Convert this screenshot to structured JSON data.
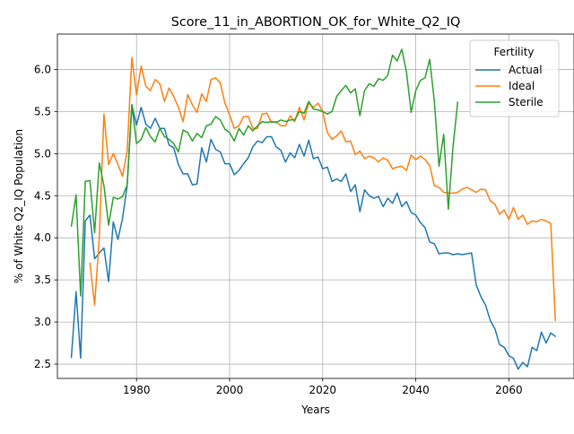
{
  "chart_data": {
    "type": "line",
    "title": "Score_11_in_ABORTION_OK_for_White_Q2_IQ",
    "xlabel": "Years",
    "ylabel": "% of White Q2_IQ Population",
    "xlim": [
      1963,
      2074
    ],
    "ylim": [
      2.33,
      6.42
    ],
    "x_ticks": [
      1980,
      2000,
      2020,
      2040,
      2060
    ],
    "y_ticks": [
      2.5,
      3.0,
      3.5,
      4.0,
      4.5,
      5.0,
      5.5,
      6.0
    ],
    "grid": true,
    "legend": {
      "title": "Fertility",
      "position": "top-right"
    },
    "series": [
      {
        "name": "Actual",
        "color": "#1f77b4",
        "x": [
          1966,
          1967,
          1968,
          1969,
          1970,
          1971,
          1972,
          1973,
          1974,
          1975,
          1976,
          1977,
          1978,
          1979,
          1980,
          1981,
          1982,
          1983,
          1984,
          1985,
          1986,
          1987,
          1988,
          1989,
          1990,
          1991,
          1992,
          1993,
          1994,
          1995,
          1996,
          1997,
          1998,
          1999,
          2000,
          2001,
          2002,
          2003,
          2004,
          2005,
          2006,
          2007,
          2008,
          2009,
          2010,
          2011,
          2012,
          2013,
          2014,
          2015,
          2016,
          2017,
          2018,
          2019,
          2020,
          2021,
          2022,
          2023,
          2024,
          2025,
          2026,
          2027,
          2028,
          2029,
          2030,
          2031,
          2032,
          2033,
          2034,
          2035,
          2036,
          2037,
          2038,
          2039,
          2040,
          2041,
          2042,
          2043,
          2044,
          2045,
          2046,
          2047,
          2048,
          2049,
          2050,
          2051,
          2052,
          2053,
          2054,
          2055,
          2056,
          2057,
          2058,
          2059,
          2060,
          2061,
          2062,
          2063,
          2064,
          2065,
          2066,
          2067,
          2068,
          2069,
          2070
        ],
        "y": [
          2.58,
          3.36,
          2.57,
          4.2,
          4.27,
          3.75,
          3.82,
          3.88,
          3.48,
          4.19,
          3.98,
          4.23,
          4.62,
          5.58,
          5.34,
          5.55,
          5.35,
          5.3,
          5.42,
          5.3,
          5.3,
          5.1,
          5.07,
          4.87,
          4.76,
          4.76,
          4.63,
          4.64,
          5.07,
          4.9,
          5.17,
          5.05,
          5.02,
          4.88,
          4.88,
          4.75,
          4.8,
          4.88,
          4.95,
          5.08,
          5.15,
          5.13,
          5.2,
          5.2,
          5.08,
          5.04,
          4.9,
          5.01,
          4.95,
          5.11,
          4.97,
          5.16,
          4.94,
          4.96,
          4.82,
          4.84,
          4.67,
          4.7,
          4.67,
          4.76,
          4.55,
          4.63,
          4.31,
          4.57,
          4.5,
          4.47,
          4.49,
          4.37,
          4.47,
          4.41,
          4.53,
          4.37,
          4.43,
          4.3,
          4.27,
          4.18,
          4.12,
          3.95,
          3.93,
          3.81,
          3.82,
          3.82,
          3.8,
          3.81,
          3.8,
          3.81,
          3.82,
          3.44,
          3.3,
          3.2,
          3.02,
          2.92,
          2.73,
          2.7,
          2.6,
          2.57,
          2.44,
          2.52,
          2.47,
          2.7,
          2.66,
          2.88,
          2.75,
          2.87,
          2.83
        ]
      },
      {
        "name": "Ideal",
        "color": "#ff7f0e",
        "x": [
          1970,
          1971,
          1972,
          1973,
          1974,
          1975,
          1976,
          1977,
          1978,
          1979,
          1980,
          1981,
          1982,
          1983,
          1984,
          1985,
          1986,
          1987,
          1988,
          1989,
          1990,
          1991,
          1992,
          1993,
          1994,
          1995,
          1996,
          1997,
          1998,
          1999,
          2000,
          2001,
          2002,
          2003,
          2004,
          2005,
          2006,
          2007,
          2008,
          2009,
          2010,
          2011,
          2012,
          2013,
          2014,
          2015,
          2016,
          2017,
          2018,
          2019,
          2020,
          2021,
          2022,
          2023,
          2024,
          2025,
          2026,
          2027,
          2028,
          2029,
          2030,
          2031,
          2032,
          2033,
          2034,
          2035,
          2036,
          2037,
          2038,
          2039,
          2040,
          2041,
          2042,
          2043,
          2044,
          2045,
          2046,
          2047,
          2048,
          2049,
          2050,
          2051,
          2052,
          2053,
          2054,
          2055,
          2056,
          2057,
          2058,
          2059,
          2060,
          2061,
          2062,
          2063,
          2064,
          2065,
          2066,
          2067,
          2068,
          2069,
          2070
        ],
        "y": [
          3.7,
          3.2,
          4.0,
          5.47,
          4.87,
          5.0,
          4.87,
          4.73,
          5.03,
          6.14,
          5.7,
          6.04,
          5.8,
          5.75,
          5.88,
          5.83,
          5.62,
          5.78,
          5.68,
          5.55,
          5.38,
          5.7,
          5.58,
          5.49,
          5.71,
          5.62,
          5.88,
          5.9,
          5.84,
          5.6,
          5.46,
          5.3,
          5.33,
          5.44,
          5.44,
          5.3,
          5.3,
          5.47,
          5.48,
          5.37,
          5.38,
          5.33,
          5.33,
          5.45,
          5.38,
          5.55,
          5.4,
          5.6,
          5.55,
          5.6,
          5.5,
          5.25,
          5.17,
          5.21,
          5.27,
          5.14,
          5.15,
          4.99,
          5.03,
          4.94,
          4.97,
          4.95,
          4.9,
          4.95,
          4.92,
          4.82,
          4.84,
          4.85,
          4.8,
          4.98,
          4.93,
          4.97,
          4.93,
          4.86,
          4.62,
          4.6,
          4.54,
          4.53,
          4.53,
          4.54,
          4.58,
          4.6,
          4.57,
          4.54,
          4.58,
          4.57,
          4.44,
          4.4,
          4.28,
          4.33,
          4.22,
          4.36,
          4.22,
          4.27,
          4.16,
          4.2,
          4.19,
          4.22,
          4.2,
          4.17,
          3.02
        ]
      },
      {
        "name": "Sterile",
        "color": "#2ca02c",
        "x": [
          1966,
          1967,
          1968,
          1969,
          1970,
          1971,
          1972,
          1973,
          1974,
          1975,
          1976,
          1977,
          1978,
          1979,
          1980,
          1981,
          1982,
          1983,
          1984,
          1985,
          1986,
          1987,
          1988,
          1989,
          1990,
          1991,
          1992,
          1993,
          1994,
          1995,
          1996,
          1997,
          1998,
          1999,
          2000,
          2001,
          2002,
          2003,
          2004,
          2005,
          2006,
          2007,
          2008,
          2009,
          2010,
          2011,
          2012,
          2013,
          2014,
          2015,
          2016,
          2017,
          2018,
          2019,
          2020,
          2021,
          2022,
          2023,
          2024,
          2025,
          2026,
          2027,
          2028,
          2029,
          2030,
          2031,
          2032,
          2033,
          2034,
          2035,
          2036,
          2037,
          2038,
          2039,
          2040,
          2041,
          2042,
          2043,
          2044,
          2045,
          2046,
          2047,
          2048,
          2049
        ],
        "y": [
          4.14,
          4.51,
          3.31,
          4.67,
          4.68,
          4.06,
          4.89,
          4.62,
          4.15,
          4.48,
          4.46,
          4.49,
          4.63,
          5.58,
          5.12,
          5.17,
          5.31,
          5.2,
          5.14,
          5.3,
          5.2,
          5.17,
          5.12,
          5.02,
          5.28,
          5.25,
          5.15,
          5.24,
          5.19,
          5.33,
          5.35,
          5.44,
          5.4,
          5.29,
          5.25,
          5.15,
          5.3,
          5.22,
          5.33,
          5.27,
          5.33,
          5.38,
          5.37,
          5.38,
          5.37,
          5.4,
          5.38,
          5.4,
          5.4,
          5.5,
          5.48,
          5.62,
          5.53,
          5.52,
          5.5,
          5.47,
          5.5,
          5.68,
          5.75,
          5.81,
          5.72,
          5.77,
          5.45,
          5.75,
          5.83,
          5.8,
          5.89,
          5.87,
          5.93,
          6.17,
          6.1,
          6.24,
          5.97,
          5.49,
          5.75,
          5.87,
          5.9,
          6.12,
          5.62,
          4.85,
          5.23,
          4.34,
          5.08,
          5.61
        ]
      }
    ]
  }
}
